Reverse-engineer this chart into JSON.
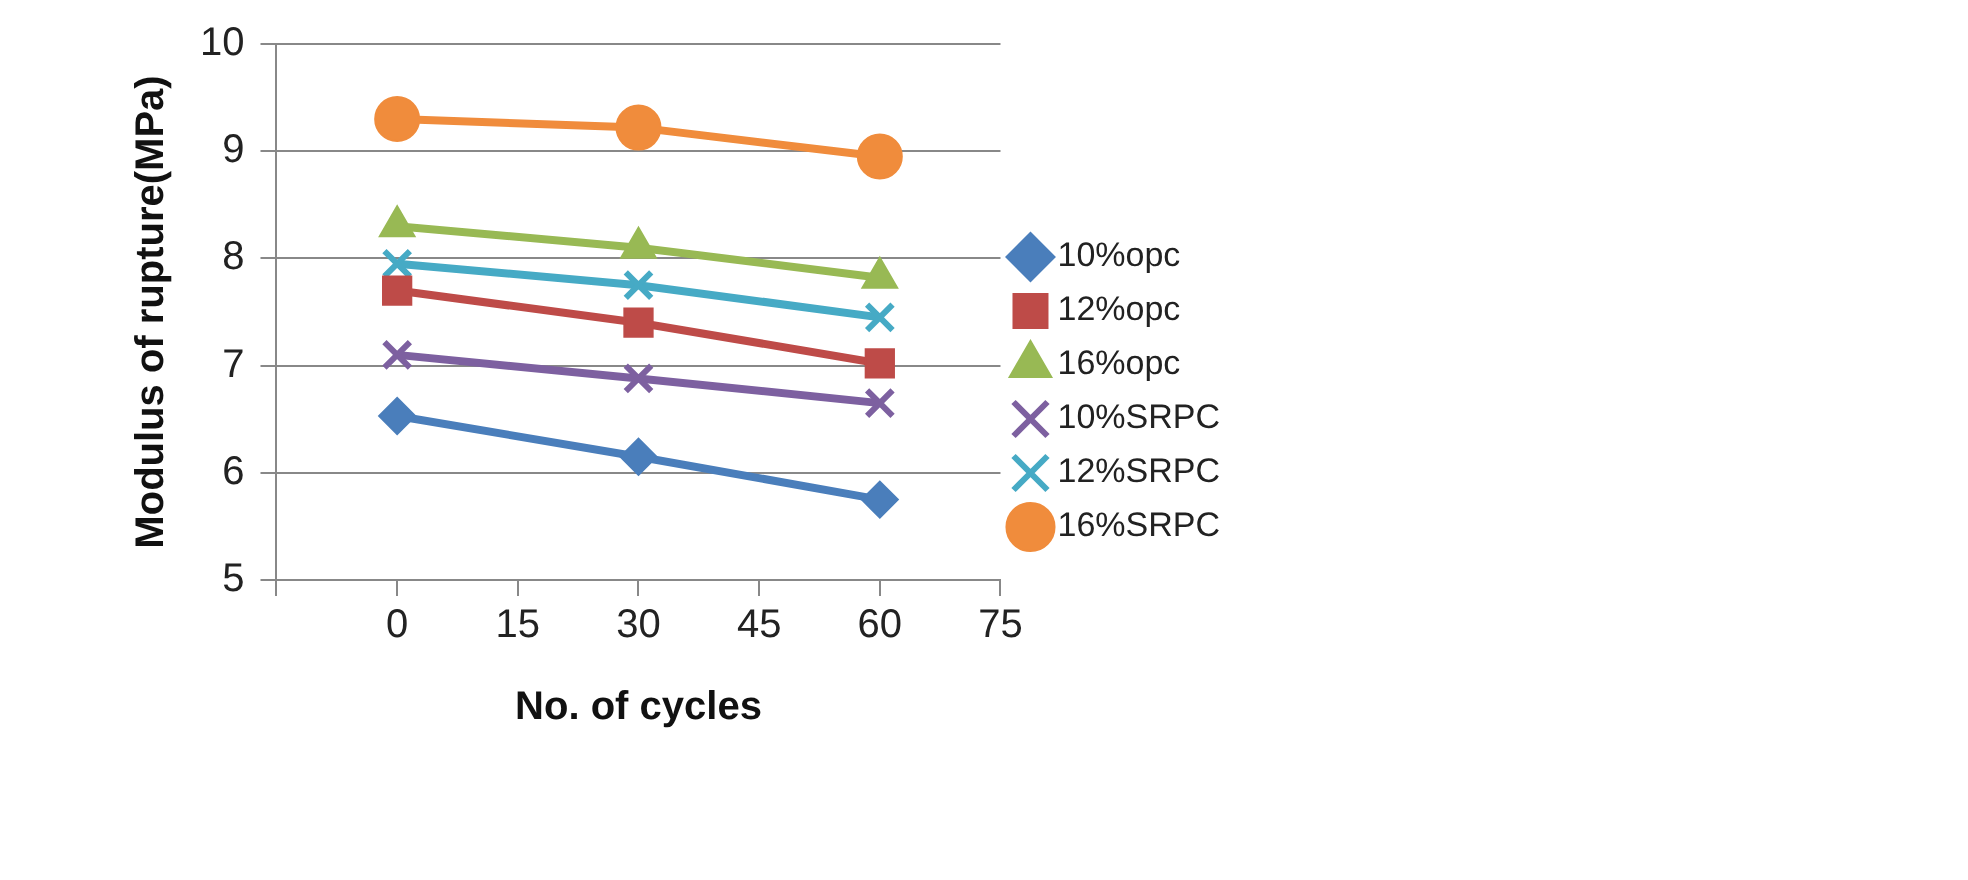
{
  "chart_data": {
    "type": "line",
    "xlabel": "No. of cycles",
    "ylabel": "Modulus of rupture(MPa)",
    "x": [
      0,
      30,
      60
    ],
    "xlim": [
      -15,
      75
    ],
    "xticks": [
      {
        "value": -15,
        "label": null
      },
      0,
      15,
      30,
      45,
      60,
      75
    ],
    "ylim": [
      5,
      10
    ],
    "yticks": [
      5,
      6,
      7,
      8,
      9,
      10
    ],
    "grid": "y",
    "legend": "right",
    "series": [
      {
        "name": "10%opc",
        "color": "#4a7ebb",
        "marker": "diamond",
        "values": [
          6.53,
          6.15,
          5.75
        ]
      },
      {
        "name": "12%opc",
        "color": "#be4b48",
        "marker": "square",
        "values": [
          7.7,
          7.4,
          7.02
        ]
      },
      {
        "name": "16%opc",
        "color": "#98b954",
        "marker": "triangle",
        "values": [
          8.3,
          8.1,
          7.82
        ]
      },
      {
        "name": "10%SRPC",
        "color": "#7d60a0",
        "marker": "cross",
        "values": [
          7.1,
          6.88,
          6.65
        ]
      },
      {
        "name": "12%SRPC",
        "color": "#46aac5",
        "marker": "cross",
        "values": [
          7.95,
          7.75,
          7.45
        ]
      },
      {
        "name": "16%SRPC",
        "color": "#f08c3c",
        "marker": "circle",
        "values": [
          9.3,
          9.22,
          8.95
        ]
      }
    ]
  }
}
